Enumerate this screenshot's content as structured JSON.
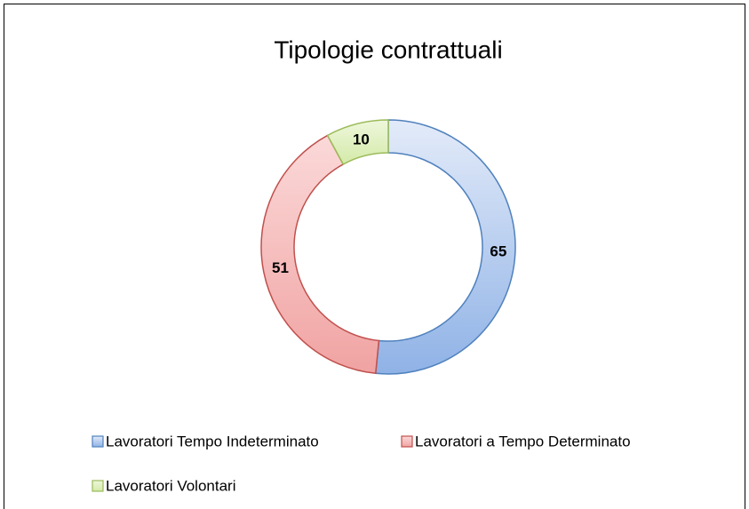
{
  "chart_data": {
    "type": "doughnut",
    "title": "Tipologie contrattuali",
    "categories": [
      "Lavoratori Tempo Indeterminato",
      "Lavoratori a Tempo Determinato",
      "Lavoratori Volontari"
    ],
    "values": [
      65,
      51,
      10
    ],
    "colors": [
      "#4f81bd",
      "#c0504d",
      "#9bbb59"
    ],
    "legend": "bottom"
  }
}
